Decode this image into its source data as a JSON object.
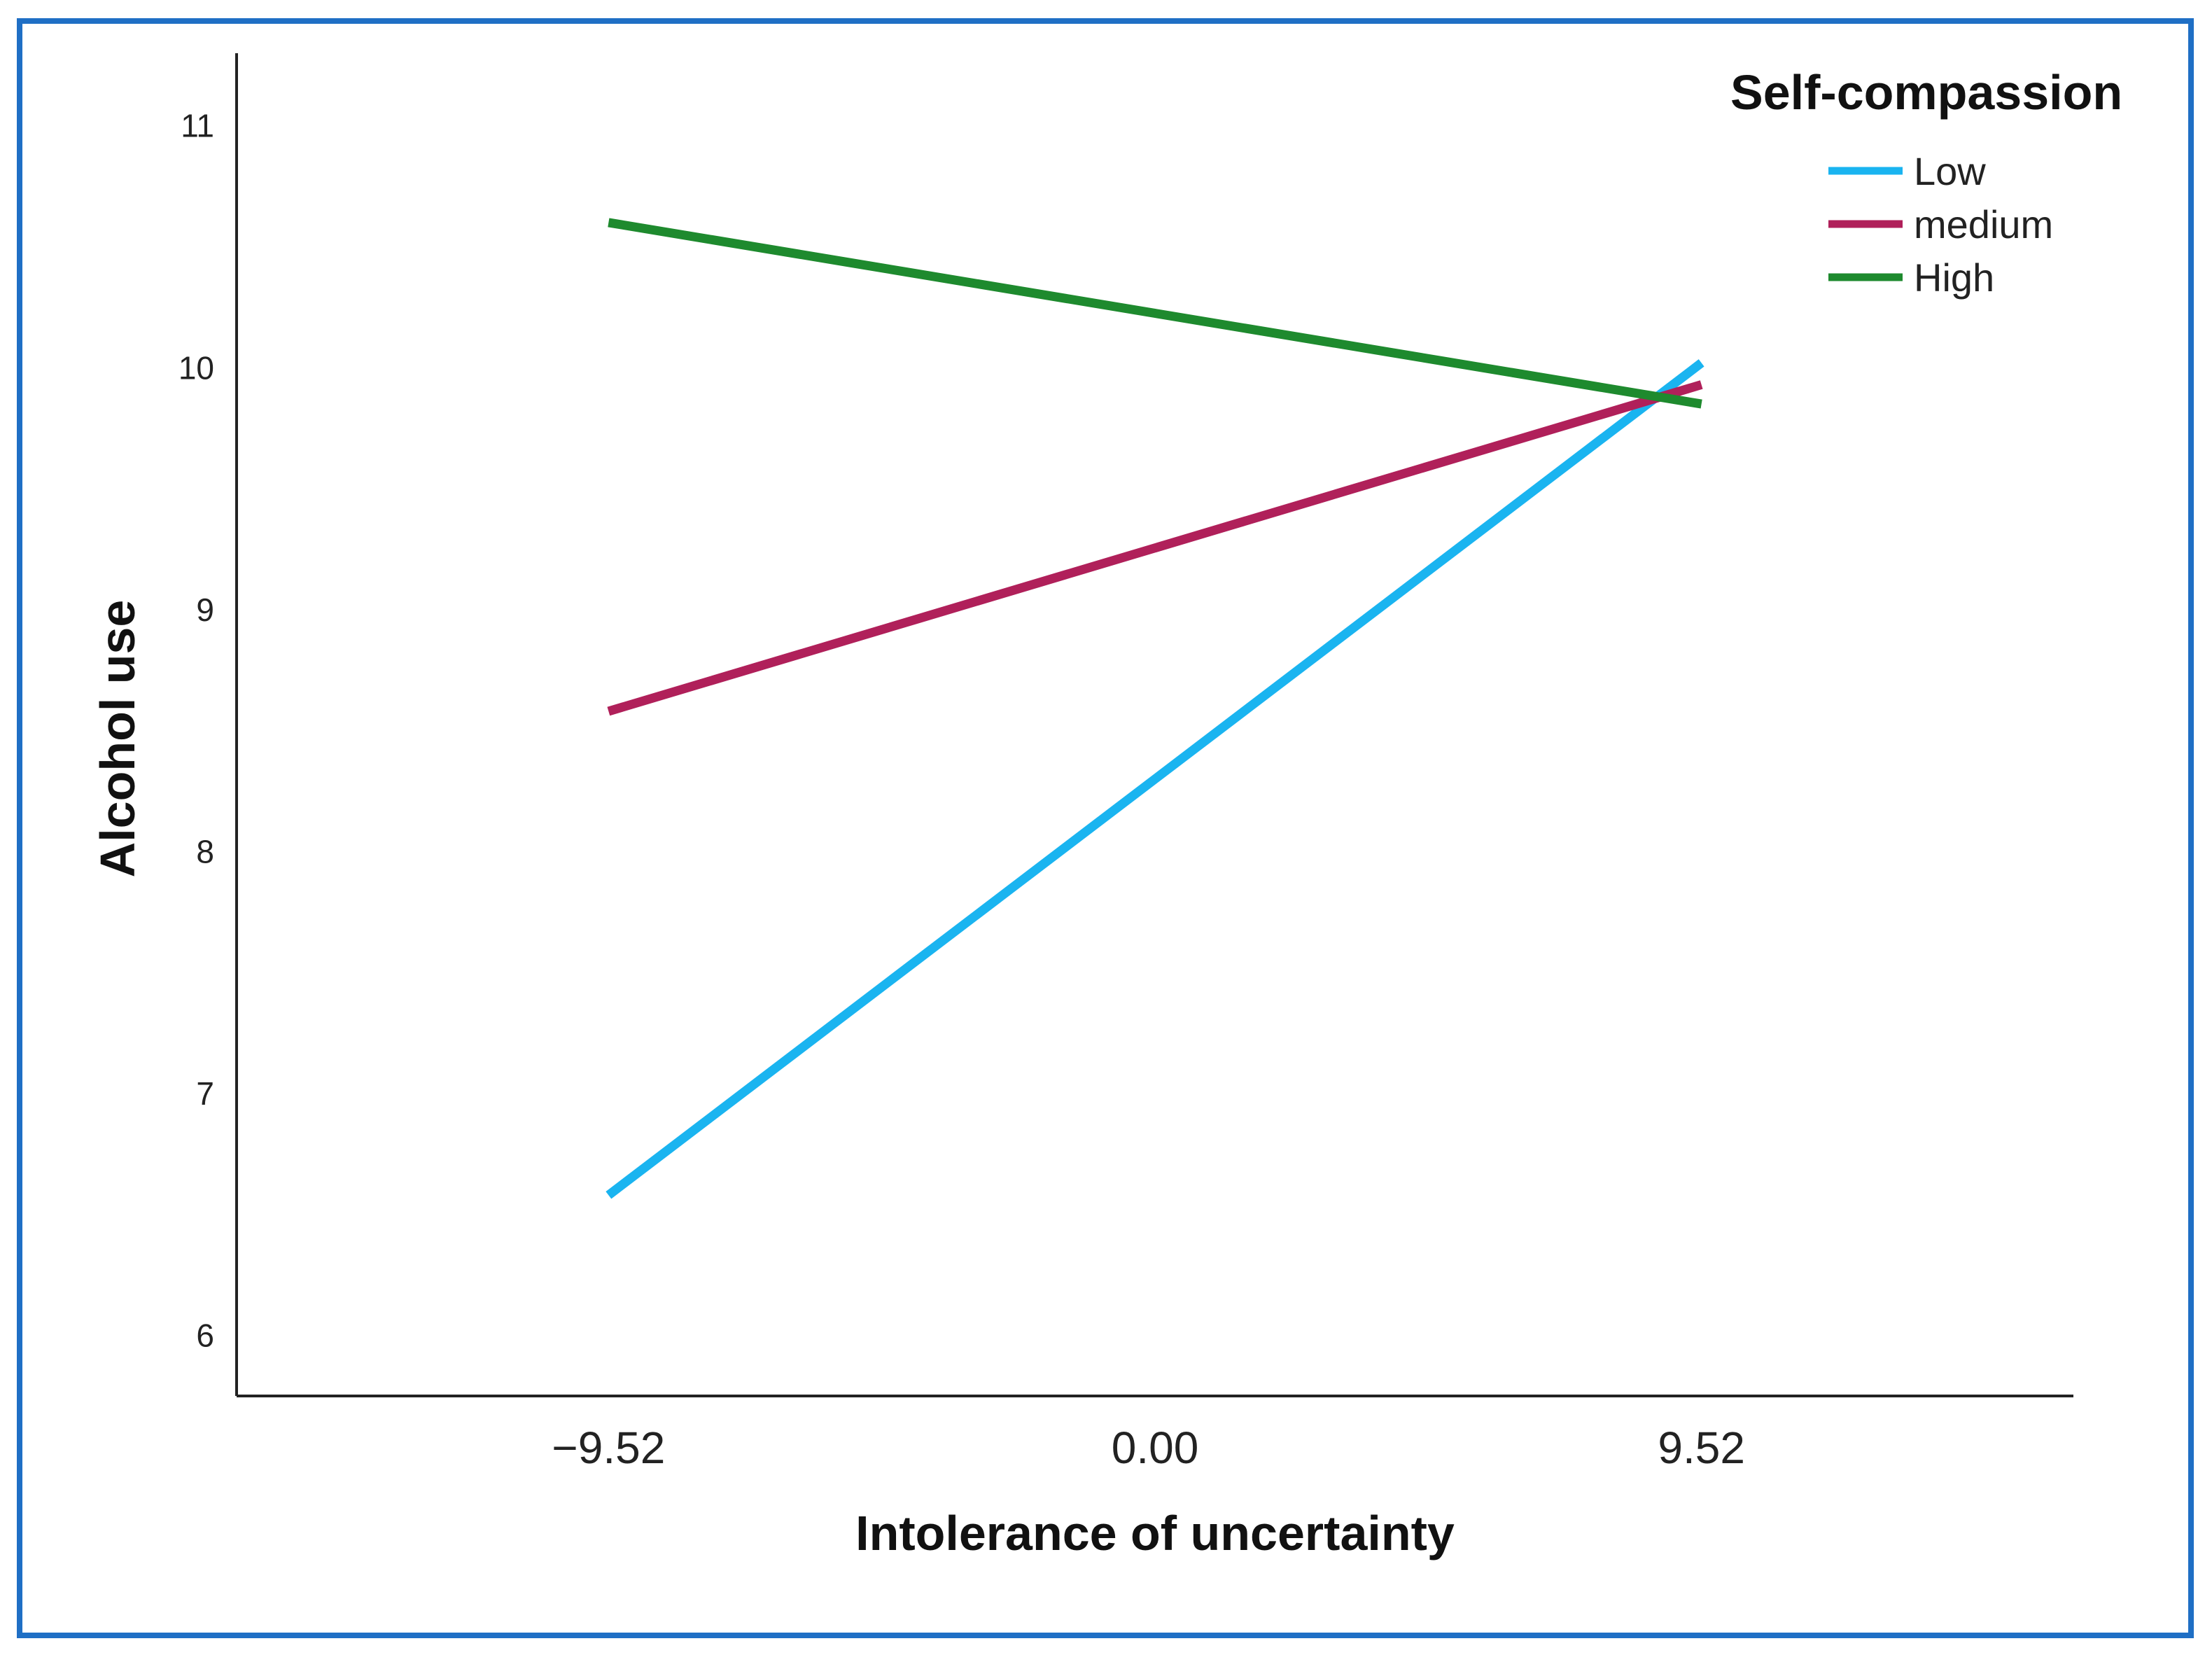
{
  "chart_data": {
    "type": "line",
    "title": "",
    "xlabel": "Intolerance of uncertainty",
    "ylabel": "Alcohol use",
    "categories": [
      "−9.52",
      "0.00",
      "9.52"
    ],
    "x": [
      -9.52,
      9.52
    ],
    "ylim": [
      5.75,
      11.3
    ],
    "xlim": [
      -16,
      16
    ],
    "y_ticks": [
      6,
      7,
      8,
      9,
      10,
      11
    ],
    "y_tick_labels": [
      "6",
      "7",
      "8",
      "9",
      "10",
      "11"
    ],
    "grid": false,
    "legend": {
      "title": "Self-compassion",
      "position": "top-right"
    },
    "series": [
      {
        "name": "Low",
        "color": "#1ab4f0",
        "values": [
          6.58,
          10.02
        ]
      },
      {
        "name": "medium",
        "color": "#b0205a",
        "values": [
          8.58,
          9.93
        ]
      },
      {
        "name": "High",
        "color": "#1e8a2e",
        "values": [
          10.6,
          9.85
        ]
      }
    ]
  }
}
